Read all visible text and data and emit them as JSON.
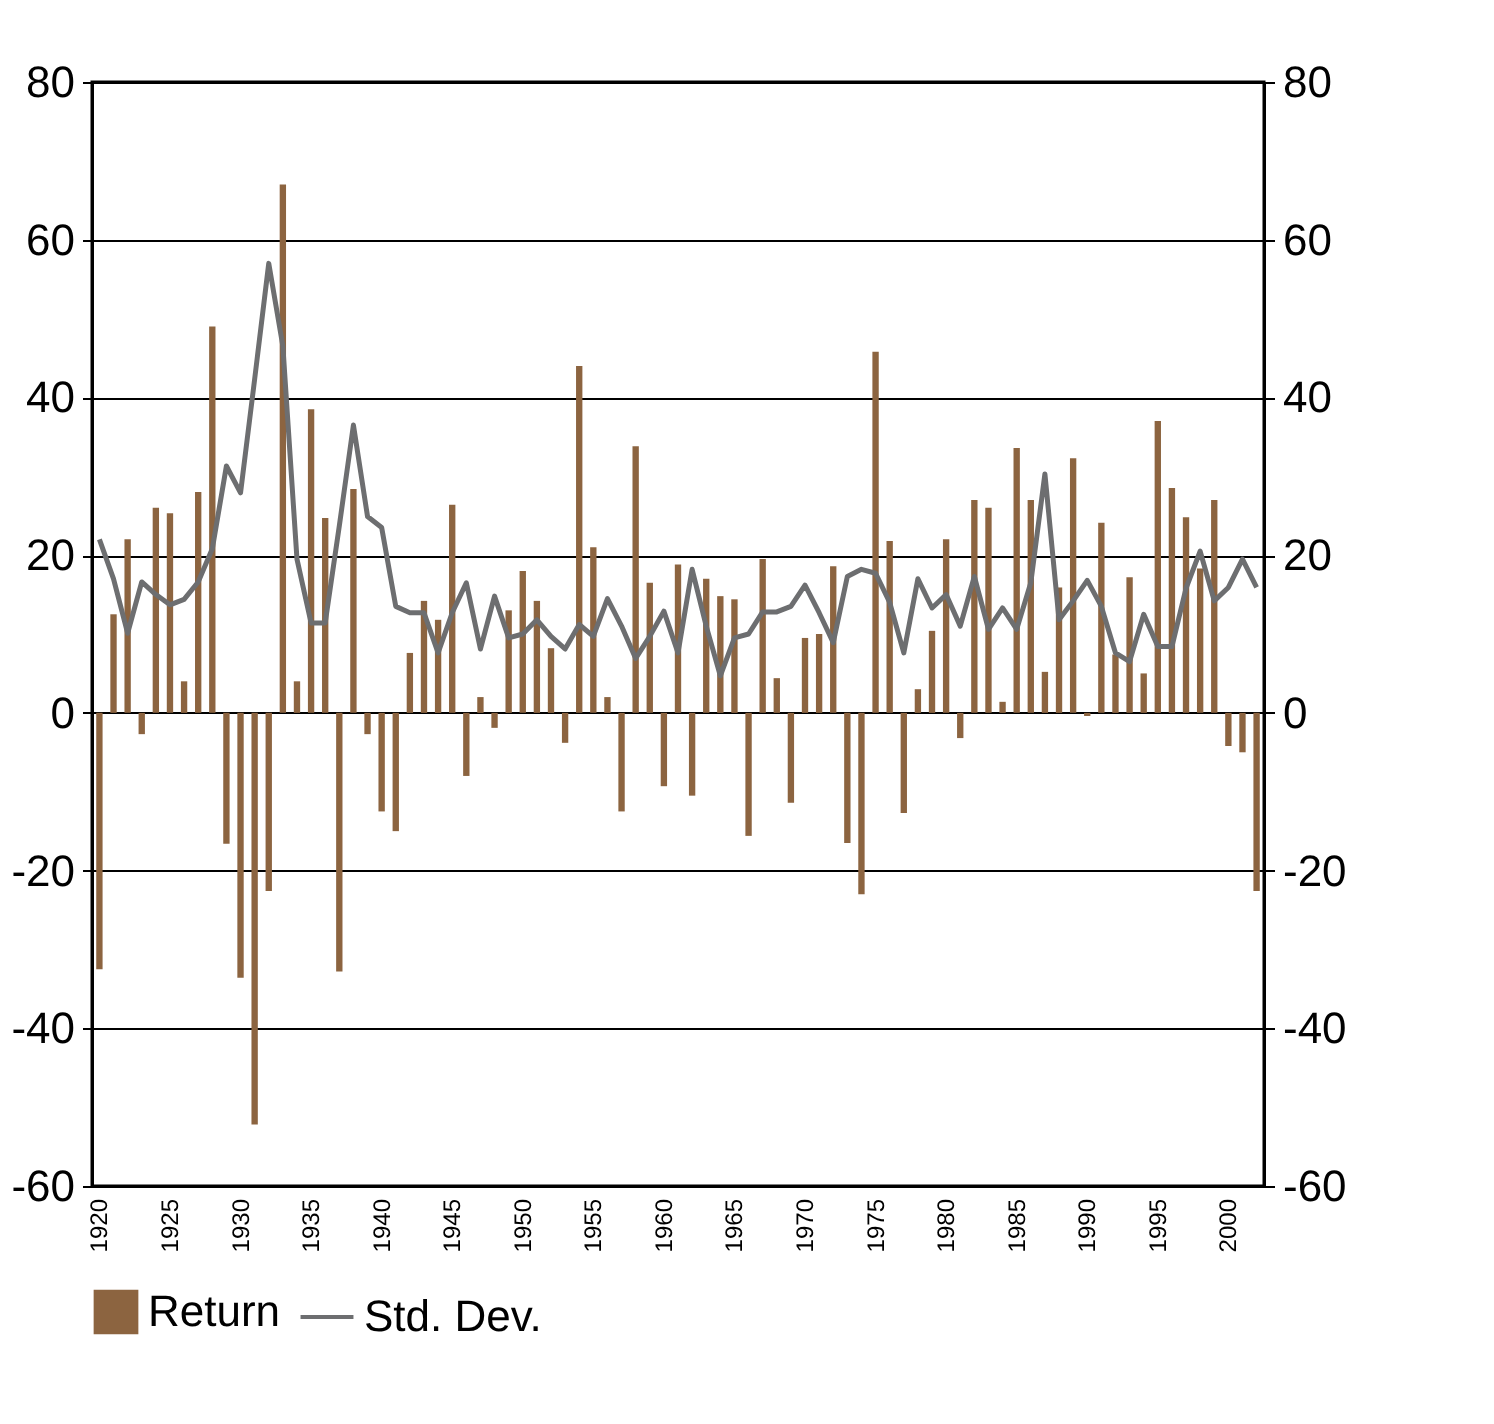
{
  "chart_data": {
    "type": "bar",
    "categories": [
      "1920",
      null,
      null,
      null,
      null,
      "1925",
      null,
      null,
      null,
      null,
      "1930",
      null,
      null,
      null,
      null,
      "1935",
      null,
      null,
      null,
      null,
      "1940",
      null,
      null,
      null,
      null,
      "1945",
      null,
      null,
      null,
      null,
      "1950",
      null,
      null,
      null,
      null,
      "1955",
      null,
      null,
      null,
      null,
      "1960",
      null,
      null,
      null,
      null,
      "1965",
      null,
      null,
      null,
      null,
      "1970",
      null,
      null,
      null,
      null,
      "1975",
      null,
      null,
      null,
      null,
      "1980",
      null,
      null,
      null,
      null,
      "1985",
      null,
      null,
      null,
      null,
      "1990",
      null,
      null,
      null,
      null,
      "1995",
      null,
      null,
      null,
      null,
      "2000",
      null,
      null
    ],
    "series": [
      {
        "name": "Return",
        "color": "#8c6440",
        "values": [
          -32.5,
          12.5,
          22,
          -2.7,
          26,
          25.3,
          4,
          28,
          49,
          -16.6,
          -33.6,
          -52.2,
          -22.6,
          67,
          4,
          38.5,
          24.7,
          -32.8,
          28.4,
          -2.7,
          -12.5,
          -15,
          7.6,
          14.2,
          11.8,
          26.4,
          -8,
          2,
          -1.9,
          13,
          18,
          14.2,
          8.2,
          -3.8,
          44,
          21,
          2,
          -12.5,
          33.8,
          16.5,
          -9.3,
          18.8,
          -10.5,
          17,
          14.8,
          14.4,
          -15.6,
          19.5,
          4.4,
          -11.4,
          9.5,
          10,
          18.6,
          -16.5,
          -23,
          45.8,
          21.8,
          -12.7,
          3,
          10.4,
          22,
          -3.2,
          27,
          26,
          1.4,
          33.6,
          27,
          5.2,
          15.9,
          32.3,
          -0.4,
          24.1,
          7.4,
          17.2,
          5,
          37,
          28.5,
          24.8,
          18.3,
          27,
          -4.2,
          -5,
          -22.6
        ]
      },
      {
        "name": "Std. Dev.",
        "type": "line",
        "axis": "y2",
        "color": "#6d6e70",
        "values": [
          22,
          17,
          10.1,
          16.6,
          15,
          13.7,
          14.4,
          16.6,
          20.8,
          31.3,
          27.9,
          42.3,
          57,
          46.5,
          19.5,
          11.4,
          11.4,
          23.7,
          36.5,
          24.9,
          23.5,
          13.5,
          12.7,
          12.7,
          7.6,
          12.7,
          16.5,
          8.1,
          14.8,
          9.5,
          10,
          11.8,
          9.7,
          8.1,
          11.2,
          9.7,
          14.5,
          11,
          6.9,
          9.7,
          12.9,
          7.6,
          18.2,
          11,
          4.7,
          9.5,
          10,
          12.8,
          12.8,
          13.5,
          16.2,
          12.7,
          8.9,
          17.3,
          18.2,
          17.7,
          14,
          7.6,
          17,
          13.3,
          15,
          11,
          17.3,
          10.6,
          13.3,
          10.6,
          16.5,
          30.3,
          11.8,
          14.2,
          16.8,
          13.5,
          7.6,
          6.5,
          12.5,
          8.4,
          8.4,
          15.8,
          20.5,
          14.2,
          15.9,
          19.5,
          15.9
        ]
      }
    ],
    "ylim": [
      -60,
      80
    ],
    "yticks": [
      -60,
      -40,
      -20,
      0,
      20,
      40,
      60,
      80
    ],
    "y2lim": [
      -60,
      80
    ],
    "y2ticks": [
      -60,
      -40,
      -20,
      0,
      20,
      40,
      60,
      80
    ],
    "grid": "y",
    "legend": "bottom"
  }
}
